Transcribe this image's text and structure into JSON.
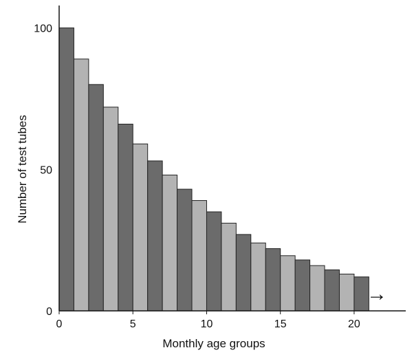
{
  "chart_data": {
    "type": "bar",
    "title": "",
    "xlabel": "Monthly age groups",
    "ylabel": "Number of test tubes",
    "categories": [
      0,
      1,
      2,
      3,
      4,
      5,
      6,
      7,
      8,
      9,
      10,
      11,
      12,
      13,
      14,
      15,
      16,
      17,
      18,
      19,
      20
    ],
    "values": [
      100,
      89,
      80,
      72,
      66,
      59,
      53,
      48,
      43,
      39,
      35,
      31,
      27,
      24,
      22,
      19.5,
      18,
      16,
      14.5,
      13,
      12
    ],
    "xlim": [
      0,
      23.5
    ],
    "ylim": [
      0,
      105
    ],
    "x_ticks": [
      0,
      5,
      10,
      15,
      20
    ],
    "y_ticks": [
      0,
      50,
      100
    ],
    "grid": false,
    "legend": "none",
    "bar_colors": [
      "#6b6b6b",
      "#b3b3b3"
    ],
    "bar_edge_color": "#222222",
    "arrow_glyph": "→"
  }
}
